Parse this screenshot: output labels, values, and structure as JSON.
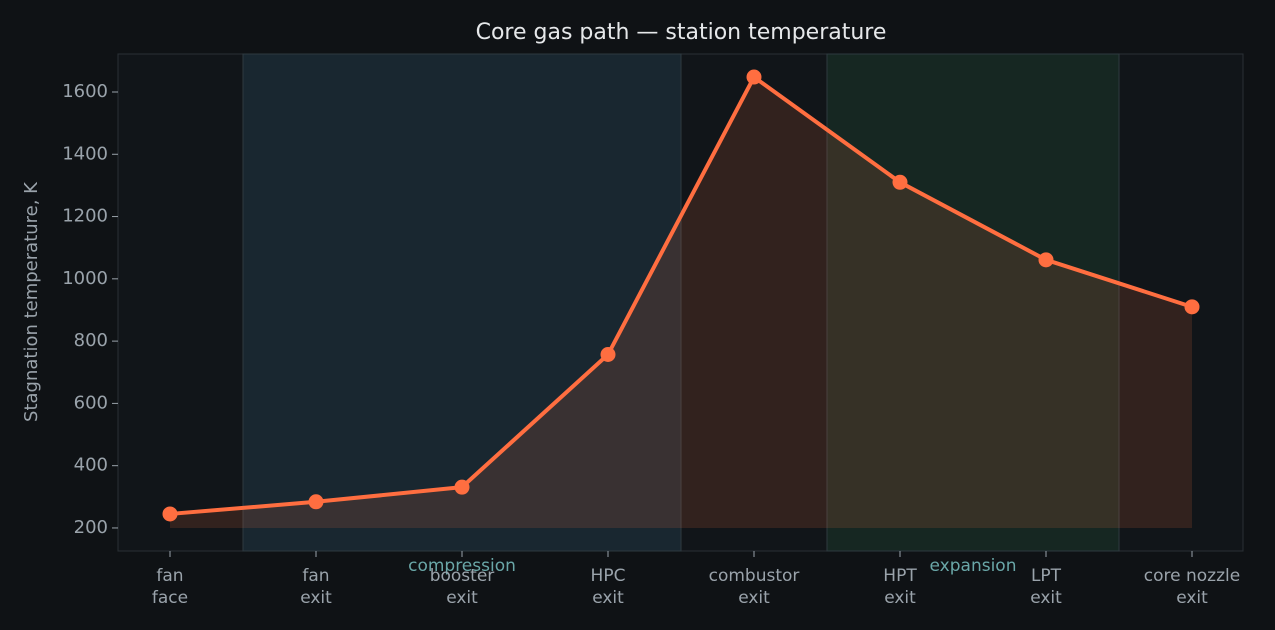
{
  "chart_data": {
    "type": "line",
    "title": "Core gas path — station temperature",
    "y_label": "Stagnation temperature, K",
    "categories": [
      "fan\nface",
      "fan\nexit",
      "booster\nexit",
      "HPC\nexit",
      "combustor\nexit",
      "HPT\nexit",
      "LPT\nexit",
      "core nozzle\nexit"
    ],
    "series": [
      {
        "name": "Stagnation temperature",
        "color": "#ff6e40",
        "values": [
          245,
          284,
          331,
          757,
          1648,
          1310,
          1061,
          910
        ]
      }
    ],
    "ylim": [
      126,
      1722
    ],
    "yticks": [
      200,
      400,
      600,
      800,
      1000,
      1200,
      1400,
      1600
    ],
    "regions": [
      {
        "label": "compression",
        "start": 0.5,
        "end": 3.5,
        "color": "#1f3340"
      },
      {
        "label": "expansion",
        "start": 4.5,
        "end": 6.5,
        "color": "#1b3328"
      }
    ],
    "fill_area": true
  }
}
